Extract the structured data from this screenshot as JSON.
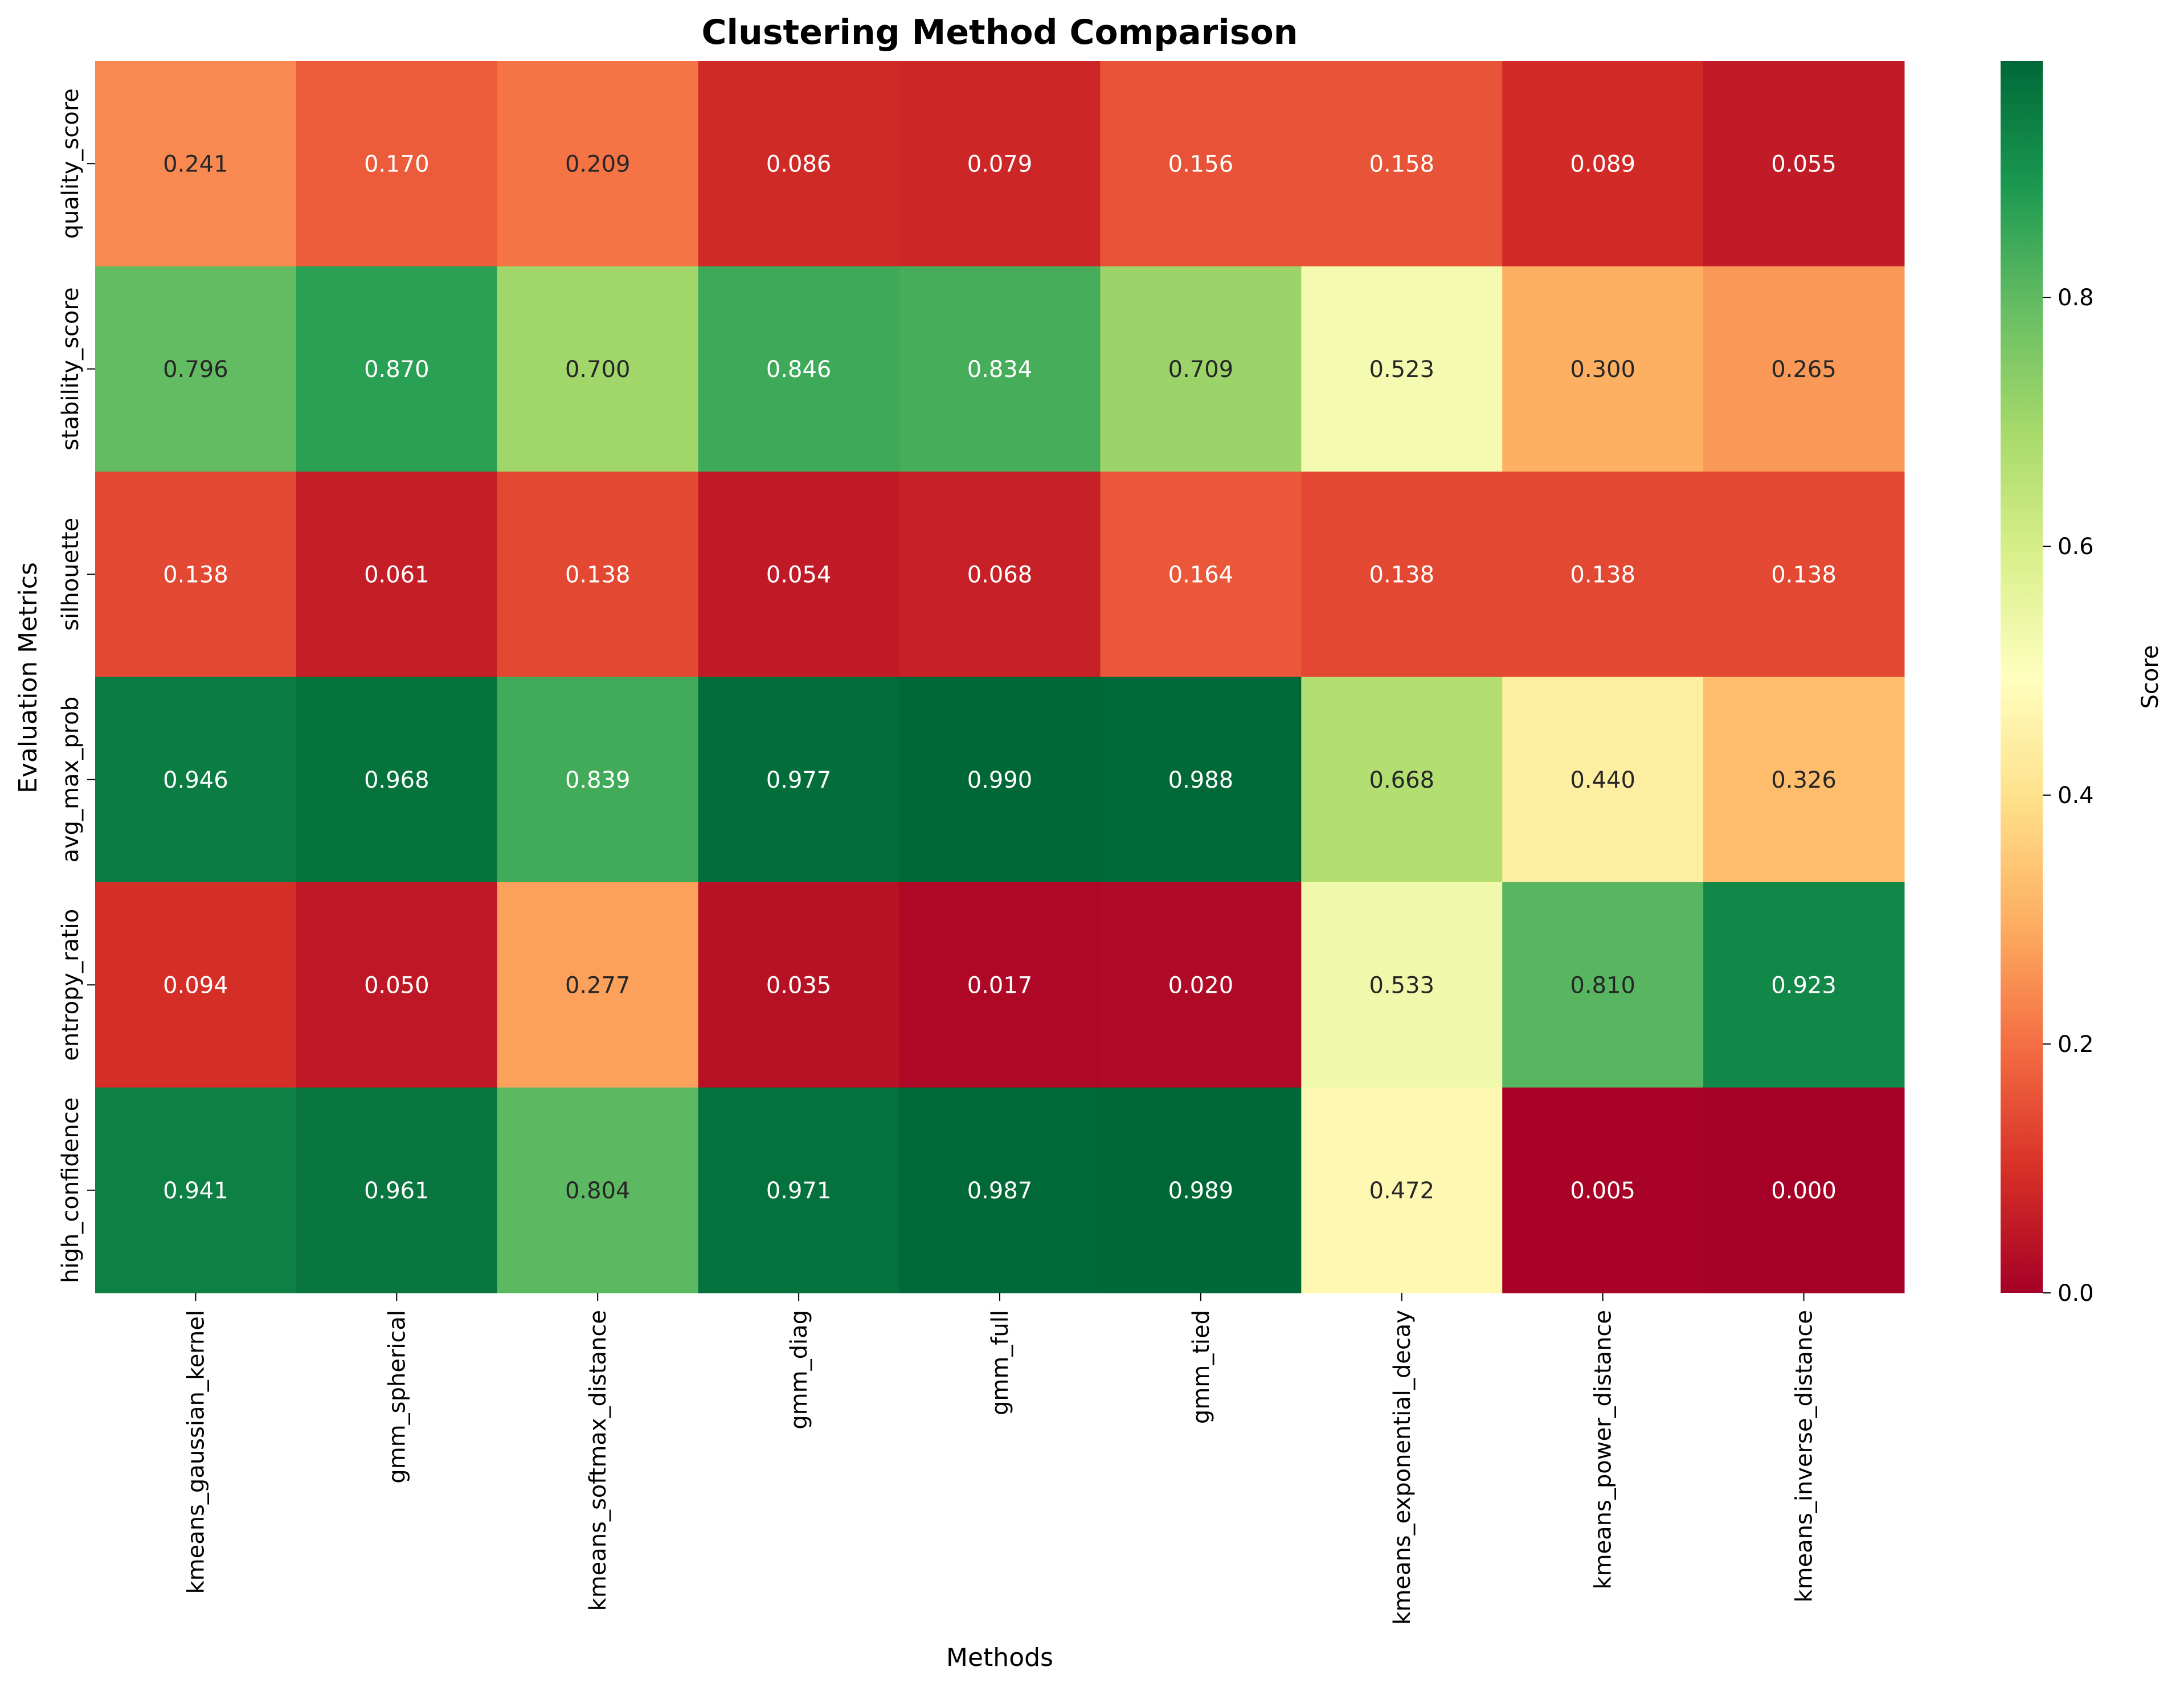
{
  "chart_data": {
    "type": "heatmap",
    "title": "Clustering Method Comparison",
    "xlabel": "Methods",
    "ylabel": "Evaluation Metrics",
    "colorbar": {
      "label": "Score",
      "colormap": "RdYlGn",
      "range": [
        0,
        0.99
      ],
      "ticks": [
        0.0,
        0.2,
        0.4,
        0.6,
        0.8
      ]
    },
    "x_categories": [
      "kmeans_gaussian_kernel",
      "gmm_spherical",
      "kmeans_softmax_distance",
      "gmm_diag",
      "gmm_full",
      "gmm_tied",
      "kmeans_exponential_decay",
      "kmeans_power_distance",
      "kmeans_inverse_distance"
    ],
    "y_categories": [
      "quality_score",
      "stability_score",
      "silhouette",
      "avg_max_prob",
      "entropy_ratio",
      "high_confidence"
    ],
    "values": [
      [
        0.241,
        0.17,
        0.209,
        0.086,
        0.079,
        0.156,
        0.158,
        0.089,
        0.055
      ],
      [
        0.796,
        0.87,
        0.7,
        0.846,
        0.834,
        0.709,
        0.523,
        0.3,
        0.265
      ],
      [
        0.138,
        0.061,
        0.138,
        0.054,
        0.068,
        0.164,
        0.138,
        0.138,
        0.138
      ],
      [
        0.946,
        0.968,
        0.839,
        0.977,
        0.99,
        0.988,
        0.668,
        0.44,
        0.326
      ],
      [
        0.094,
        0.05,
        0.277,
        0.035,
        0.017,
        0.02,
        0.533,
        0.81,
        0.923
      ],
      [
        0.941,
        0.961,
        0.804,
        0.971,
        0.987,
        0.989,
        0.472,
        0.005,
        0.0
      ]
    ],
    "value_format": "0.000"
  }
}
